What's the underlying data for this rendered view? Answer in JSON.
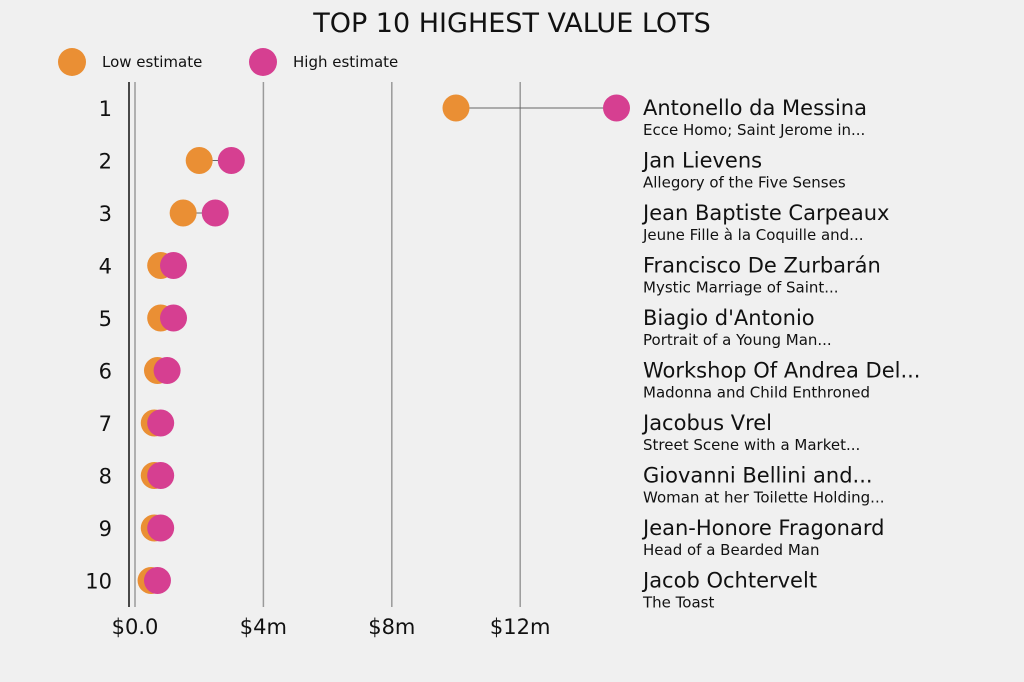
{
  "chart_data": {
    "type": "dumbbell",
    "title": "TOP 10 HIGHEST VALUE LOTS",
    "legend": [
      {
        "label": "Low estimate",
        "color": "#ea8f34"
      },
      {
        "label": "High estimate",
        "color": "#d63f91"
      }
    ],
    "xlim": [
      0,
      15000000
    ],
    "x_ticks": [
      {
        "value": 0,
        "label": "$0.0"
      },
      {
        "value": 4000000,
        "label": "$4m"
      },
      {
        "value": 8000000,
        "label": "$8m"
      },
      {
        "value": 12000000,
        "label": "$12m"
      }
    ],
    "rows": [
      {
        "rank": "1",
        "artist": "Antonello da Messina",
        "work": "Ecce Homo; Saint Jerome in...",
        "low": 10000000,
        "high": 15000000
      },
      {
        "rank": "2",
        "artist": "Jan Lievens",
        "work": "Allegory of the Five Senses",
        "low": 2000000,
        "high": 3000000
      },
      {
        "rank": "3",
        "artist": "Jean Baptiste Carpeaux",
        "work": "Jeune Fille à la Coquille and...",
        "low": 1500000,
        "high": 2500000
      },
      {
        "rank": "4",
        "artist": "Francisco De Zurbarán",
        "work": "Mystic Marriage of Saint...",
        "low": 800000,
        "high": 1200000
      },
      {
        "rank": "5",
        "artist": "Biagio d'Antonio",
        "work": "Portrait of a Young Man...",
        "low": 800000,
        "high": 1200000
      },
      {
        "rank": "6",
        "artist": "Workshop Of Andrea Del...",
        "work": "Madonna and Child Enthroned",
        "low": 700000,
        "high": 1000000
      },
      {
        "rank": "7",
        "artist": "Jacobus Vrel",
        "work": "Street Scene with a Market...",
        "low": 600000,
        "high": 800000
      },
      {
        "rank": "8",
        "artist": "Giovanni Bellini and...",
        "work": "Woman at her Toilette Holding...",
        "low": 600000,
        "high": 800000
      },
      {
        "rank": "9",
        "artist": "Jean-Honore Fragonard",
        "work": "Head of a Bearded Man",
        "low": 600000,
        "high": 800000
      },
      {
        "rank": "10",
        "artist": "Jacob Ochtervelt",
        "work": "The Toast",
        "low": 500000,
        "high": 700000
      }
    ]
  }
}
